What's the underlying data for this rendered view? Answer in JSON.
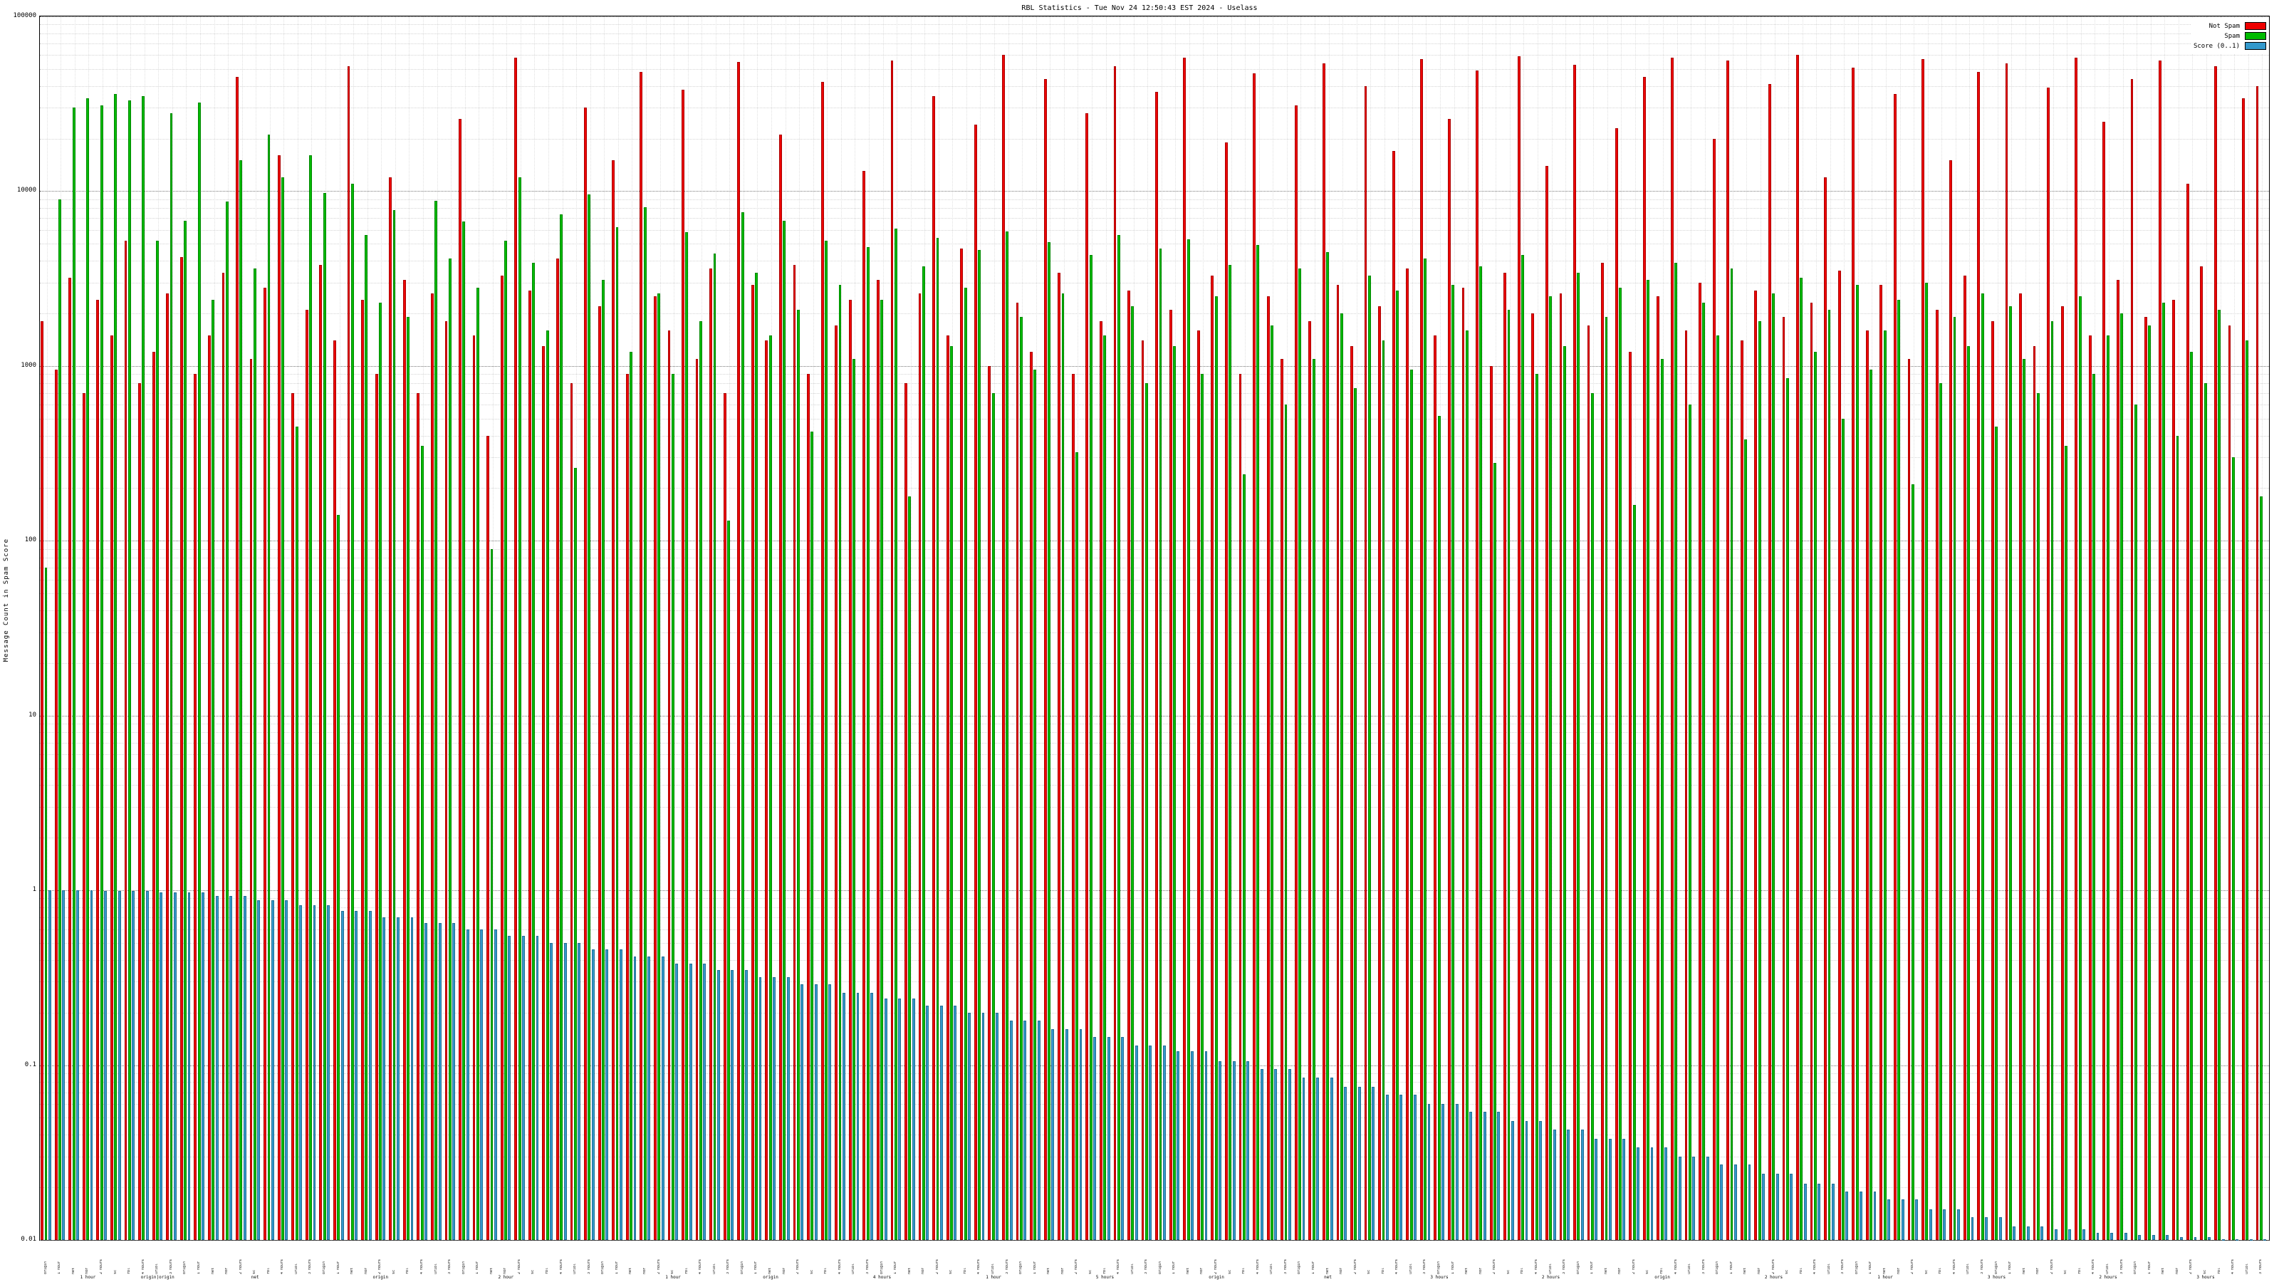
{
  "title": "RBL Statistics - Tue Nov 24 12:50:43 EST 2024 - Uselass",
  "ylabel": "Message Count in Spam Score",
  "legend": [
    {
      "label": "Not Spam",
      "color": "#ee0000"
    },
    {
      "label": "Spam",
      "color": "#00bb00"
    },
    {
      "label": "Score (0..1)",
      "color": "#3399cc"
    }
  ],
  "chart_data": {
    "type": "bar",
    "yscale": "log",
    "ylim": [
      0.01,
      100000
    ],
    "yticks": [
      "0.01",
      "0.1",
      "1",
      "10",
      "100",
      "1000",
      "10000",
      "100000"
    ],
    "grid": true,
    "legend_position": "top-right",
    "categories": [
      "origin",
      "1 hour",
      "net",
      "hdr",
      "2 hours",
      "sc",
      "rbl",
      "4 hours",
      "uribl",
      "3 hours",
      "origin",
      "1 hour",
      "net",
      "hdr",
      "2 hours",
      "sc",
      "rbl",
      "4 hours",
      "uribl",
      "3 hours",
      "origin",
      "1 hour",
      "net",
      "hdr",
      "2 hours",
      "sc",
      "rbl",
      "4 hours",
      "uribl",
      "3 hours",
      "origin",
      "1 hour",
      "net",
      "hdr",
      "2 hours",
      "sc",
      "rbl",
      "4 hours",
      "uribl",
      "3 hours",
      "origin",
      "1 hour",
      "net",
      "hdr",
      "2 hours",
      "sc",
      "rbl",
      "4 hours",
      "uribl",
      "3 hours",
      "origin",
      "1 hour",
      "net",
      "hdr",
      "2 hours",
      "sc",
      "rbl",
      "4 hours",
      "uribl",
      "3 hours",
      "origin",
      "1 hour",
      "net",
      "hdr",
      "2 hours",
      "sc",
      "rbl",
      "4 hours",
      "uribl",
      "3 hours",
      "origin",
      "1 hour",
      "net",
      "hdr",
      "2 hours",
      "sc",
      "rbl",
      "4 hours",
      "uribl",
      "3 hours",
      "origin",
      "1 hour",
      "net",
      "hdr",
      "2 hours",
      "sc",
      "rbl",
      "4 hours",
      "uribl",
      "3 hours",
      "origin",
      "1 hour",
      "net",
      "hdr",
      "2 hours",
      "sc",
      "rbl",
      "4 hours",
      "uribl",
      "3 hours",
      "origin",
      "1 hour",
      "net",
      "hdr",
      "2 hours",
      "sc",
      "rbl",
      "4 hours",
      "uribl",
      "3 hours",
      "origin",
      "1 hour",
      "net",
      "hdr",
      "2 hours",
      "sc",
      "rbl",
      "4 hours",
      "uribl",
      "3 hours",
      "origin",
      "1 hour",
      "net",
      "hdr",
      "2 hours",
      "sc",
      "rbl",
      "4 hours",
      "uribl",
      "3 hours",
      "origin",
      "1 hour",
      "net",
      "hdr",
      "2 hours",
      "sc",
      "rbl",
      "4 hours",
      "uribl",
      "3 hours",
      "origin",
      "1 hour",
      "net",
      "hdr",
      "2 hours",
      "sc",
      "rbl",
      "4 hours",
      "uribl",
      "3 hours",
      "origin",
      "1 hour",
      "net",
      "hdr",
      "2 hours",
      "sc",
      "rbl",
      "4 hours",
      "uribl",
      "3 hours"
    ],
    "xsecondary": [
      {
        "i": 3,
        "text": "1 hour"
      },
      {
        "i": 8,
        "text": "origin|origin"
      },
      {
        "i": 15,
        "text": "net"
      },
      {
        "i": 24,
        "text": "origin"
      },
      {
        "i": 33,
        "text": "2 hour"
      },
      {
        "i": 45,
        "text": "1 hour"
      },
      {
        "i": 52,
        "text": "origin"
      },
      {
        "i": 60,
        "text": "4 hours"
      },
      {
        "i": 68,
        "text": "1 hour"
      },
      {
        "i": 76,
        "text": "5 hours"
      },
      {
        "i": 84,
        "text": "origin"
      },
      {
        "i": 92,
        "text": "net"
      },
      {
        "i": 100,
        "text": "3 hours"
      },
      {
        "i": 108,
        "text": "2 hours"
      },
      {
        "i": 116,
        "text": "origin"
      },
      {
        "i": 124,
        "text": "2 hours"
      },
      {
        "i": 132,
        "text": "1 hour"
      },
      {
        "i": 140,
        "text": "3 hours"
      },
      {
        "i": 148,
        "text": "2 hours"
      },
      {
        "i": 155,
        "text": "3 hours"
      }
    ],
    "series": [
      {
        "name": "Not Spam",
        "color": "#ee0000",
        "values": [
          1800,
          950,
          3200,
          700,
          2400,
          1500,
          5200,
          800,
          1200,
          2600,
          4200,
          900,
          1500,
          3400,
          45000,
          1100,
          2800,
          16000,
          700,
          2100,
          3800,
          1400,
          52000,
          2400,
          900,
          12000,
          3100,
          700,
          2600,
          1800,
          26000,
          1500,
          400,
          3300,
          58000,
          2700,
          1300,
          4100,
          800,
          30000,
          2200,
          15000,
          900,
          48000,
          2500,
          1600,
          38000,
          1100,
          3600,
          700,
          55000,
          2900,
          1400,
          21000,
          3800,
          900,
          42000,
          1700,
          2400,
          13000,
          3100,
          56000,
          800,
          2600,
          35000,
          1500,
          4700,
          24000,
          1000,
          60000,
          2300,
          1200,
          44000,
          3400,
          900,
          28000,
          1800,
          52000,
          2700,
          1400,
          37000,
          2100,
          58000,
          1600,
          3300,
          19000,
          900,
          47000,
          2500,
          1100,
          31000,
          1800,
          54000,
          2900,
          1300,
          40000,
          2200,
          17000,
          3600,
          57000,
          1500,
          26000,
          2800,
          49000,
          1000,
          3400,
          59000,
          2000,
          14000,
          2600,
          53000,
          1700,
          3900,
          23000,
          1200,
          45000,
          2500,
          58000,
          1600,
          3000,
          20000,
          56000,
          1400,
          2700,
          41000,
          1900,
          60000,
          2300,
          12000,
          3500,
          51000,
          1600,
          2900,
          36000,
          1100,
          57000,
          2100,
          15000,
          3300,
          48000,
          1800,
          54000,
          2600,
          1300,
          39000,
          2200,
          58000,
          1500,
          25000,
          3100,
          44000,
          1900,
          56000,
          2400,
          11000,
          3700,
          52000,
          1700,
          34000,
          40000
        ]
      },
      {
        "name": "Spam",
        "color": "#00bb00",
        "values": [
          70,
          9000,
          30000,
          34000,
          31000,
          36000,
          33000,
          35000,
          5200,
          28000,
          6800,
          32000,
          2400,
          8700,
          15000,
          3600,
          21000,
          12000,
          450,
          16000,
          9800,
          140,
          11000,
          5600,
          2300,
          7800,
          1900,
          350,
          8800,
          4100,
          6700,
          2800,
          90,
          5200,
          12000,
          3900,
          1600,
          7400,
          260,
          9600,
          3100,
          6200,
          1200,
          8100,
          2600,
          900,
          5800,
          1800,
          4400,
          130,
          7600,
          3400,
          1500,
          6800,
          2100,
          420,
          5200,
          2900,
          1100,
          4800,
          2400,
          6100,
          180,
          3700,
          5400,
          1300,
          2800,
          4600,
          700,
          5900,
          1900,
          950,
          5100,
          2600,
          320,
          4300,
          1500,
          5600,
          2200,
          800,
          4700,
          1300,
          5300,
          900,
          2500,
          3800,
          240,
          4900,
          1700,
          600,
          3600,
          1100,
          4500,
          2000,
          750,
          3300,
          1400,
          2700,
          950,
          4100,
          520,
          2900,
          1600,
          3700,
          280,
          2100,
          4300,
          900,
          2500,
          1300,
          3400,
          700,
          1900,
          2800,
          160,
          3100,
          1100,
          3900,
          600,
          2300,
          1500,
          3600,
          380,
          1800,
          2600,
          850,
          3200,
          1200,
          2100,
          500,
          2900,
          950,
          1600,
          2400,
          210,
          3000,
          800,
          1900,
          1300,
          2600,
          450,
          2200,
          1100,
          700,
          1800,
          350,
          2500,
          900,
          1500,
          2000,
          600,
          1700,
          2300,
          400,
          1200,
          800,
          2100,
          300,
          1400,
          180
        ]
      },
      {
        "name": "Score (0..1)",
        "color": "#3399cc",
        "values": [
          1.0,
          1.0,
          1.0,
          1.0,
          0.99,
          0.99,
          0.99,
          0.99,
          0.97,
          0.97,
          0.97,
          0.97,
          0.93,
          0.93,
          0.93,
          0.88,
          0.88,
          0.88,
          0.82,
          0.82,
          0.82,
          0.76,
          0.76,
          0.76,
          0.7,
          0.7,
          0.7,
          0.65,
          0.65,
          0.65,
          0.6,
          0.6,
          0.6,
          0.55,
          0.55,
          0.55,
          0.5,
          0.5,
          0.5,
          0.46,
          0.46,
          0.46,
          0.42,
          0.42,
          0.42,
          0.38,
          0.38,
          0.38,
          0.35,
          0.35,
          0.35,
          0.32,
          0.32,
          0.32,
          0.29,
          0.29,
          0.29,
          0.26,
          0.26,
          0.26,
          0.24,
          0.24,
          0.24,
          0.22,
          0.22,
          0.22,
          0.2,
          0.2,
          0.2,
          0.18,
          0.18,
          0.18,
          0.16,
          0.16,
          0.16,
          0.145,
          0.145,
          0.145,
          0.13,
          0.13,
          0.13,
          0.12,
          0.12,
          0.12,
          0.105,
          0.105,
          0.105,
          0.095,
          0.095,
          0.095,
          0.085,
          0.085,
          0.085,
          0.075,
          0.075,
          0.075,
          0.068,
          0.068,
          0.068,
          0.06,
          0.06,
          0.06,
          0.054,
          0.054,
          0.054,
          0.048,
          0.048,
          0.048,
          0.043,
          0.043,
          0.043,
          0.038,
          0.038,
          0.038,
          0.034,
          0.034,
          0.034,
          0.03,
          0.03,
          0.03,
          0.027,
          0.027,
          0.027,
          0.024,
          0.024,
          0.024,
          0.021,
          0.021,
          0.021,
          0.019,
          0.019,
          0.019,
          0.017,
          0.017,
          0.017,
          0.015,
          0.015,
          0.015,
          0.0135,
          0.0135,
          0.0135,
          0.012,
          0.012,
          0.012,
          0.0115,
          0.0115,
          0.0115,
          0.011,
          0.011,
          0.011,
          0.0107,
          0.0107,
          0.0107,
          0.0104,
          0.0104,
          0.0104,
          0.0101,
          0.0101,
          0.0101,
          0.0101
        ]
      }
    ]
  }
}
